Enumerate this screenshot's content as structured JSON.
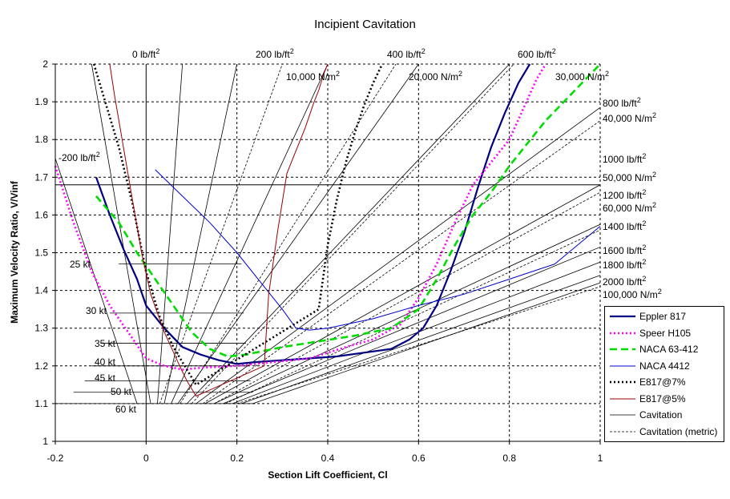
{
  "chart_data": {
    "type": "line",
    "title": "Incipient Cavitation",
    "xlabel": "Section Lift Coefficient, Cl",
    "ylabel": "Maximum Velocity Ratio, V/Vinf",
    "xlim": [
      -0.2,
      1.0
    ],
    "ylim": [
      1.0,
      2.0
    ],
    "x_ticks": [
      -0.2,
      0,
      0.2,
      0.4,
      0.6,
      0.8,
      1
    ],
    "x_tick_labels": [
      "-0.2",
      "0",
      "0.2",
      "0.4",
      "0.6",
      "0.8",
      "1"
    ],
    "y_ticks": [
      1,
      1.1,
      1.2,
      1.3,
      1.4,
      1.5,
      1.6,
      1.7,
      1.8,
      1.9,
      2
    ],
    "y_tick_labels": [
      "1",
      "1.1",
      "1.2",
      "1.3",
      "1.4",
      "1.5",
      "1.6",
      "1.7",
      "1.8",
      "1.9",
      "2"
    ],
    "grid": "dashed",
    "legend_position": "lower-right",
    "series": [
      {
        "name": "Eppler 817",
        "color": "#000080",
        "style": "solid-bold",
        "x": [
          -0.11,
          -0.08,
          -0.05,
          -0.02,
          0.0,
          0.04,
          0.08,
          0.12,
          0.16,
          0.2,
          0.24,
          0.3,
          0.36,
          0.42,
          0.48,
          0.54,
          0.58,
          0.61,
          0.64,
          0.67,
          0.7,
          0.73,
          0.76,
          0.79,
          0.82,
          0.845
        ],
        "y": [
          1.7,
          1.6,
          1.51,
          1.43,
          1.36,
          1.3,
          1.25,
          1.23,
          1.215,
          1.205,
          1.21,
          1.215,
          1.22,
          1.225,
          1.235,
          1.245,
          1.27,
          1.3,
          1.36,
          1.45,
          1.55,
          1.67,
          1.78,
          1.87,
          1.95,
          2.0
        ]
      },
      {
        "name": "Speer H105",
        "color": "#ff00ff",
        "style": "dotted-bold",
        "x": [
          -0.2,
          -0.16,
          -0.12,
          -0.08,
          -0.04,
          0.0,
          0.04,
          0.08,
          0.12,
          0.2,
          0.28,
          0.36,
          0.44,
          0.5,
          0.56,
          0.6,
          0.64,
          0.68,
          0.72,
          0.76,
          0.8,
          0.83,
          0.86,
          0.88
        ],
        "y": [
          1.73,
          1.58,
          1.45,
          1.36,
          1.29,
          1.22,
          1.2,
          1.19,
          1.195,
          1.2,
          1.21,
          1.22,
          1.25,
          1.27,
          1.31,
          1.38,
          1.47,
          1.58,
          1.68,
          1.74,
          1.8,
          1.88,
          1.96,
          2.0
        ]
      },
      {
        "name": "NACA 63-412",
        "color": "#00dd00",
        "style": "dashed-bold",
        "x": [
          -0.11,
          -0.06,
          -0.02,
          0.02,
          0.06,
          0.1,
          0.14,
          0.18,
          0.22,
          0.3,
          0.38,
          0.46,
          0.54,
          0.6,
          0.64,
          0.68,
          0.72,
          0.76,
          0.8,
          0.84,
          0.88,
          0.92,
          0.96,
          1.0
        ],
        "y": [
          1.65,
          1.58,
          1.5,
          1.43,
          1.36,
          1.29,
          1.245,
          1.225,
          1.23,
          1.25,
          1.265,
          1.28,
          1.3,
          1.35,
          1.43,
          1.52,
          1.6,
          1.66,
          1.73,
          1.79,
          1.85,
          1.9,
          1.95,
          2.0
        ]
      },
      {
        "name": "NACA 4412",
        "color": "#0000cc",
        "style": "solid-thin",
        "x": [
          0.02,
          0.08,
          0.14,
          0.2,
          0.26,
          0.3,
          0.33,
          0.36,
          0.4,
          0.5,
          0.6,
          0.7,
          0.8,
          0.9,
          1.0
        ],
        "y": [
          1.72,
          1.65,
          1.58,
          1.5,
          1.41,
          1.35,
          1.3,
          1.295,
          1.3,
          1.325,
          1.36,
          1.39,
          1.43,
          1.47,
          1.57
        ]
      },
      {
        "name": "E817@7%",
        "color": "#000000",
        "style": "dotted-bold",
        "x": [
          -0.115,
          -0.09,
          -0.06,
          -0.03,
          0.0,
          0.03,
          0.06,
          0.09,
          0.11,
          0.38,
          0.4,
          0.42,
          0.44,
          0.46,
          0.48,
          0.5,
          0.52
        ],
        "y": [
          2.0,
          1.9,
          1.78,
          1.63,
          1.45,
          1.33,
          1.25,
          1.19,
          1.15,
          1.35,
          1.52,
          1.64,
          1.74,
          1.82,
          1.89,
          1.95,
          2.0
        ]
      },
      {
        "name": "E817@5%",
        "color": "#990000",
        "style": "solid-thin",
        "x": [
          -0.08,
          -0.07,
          -0.05,
          -0.03,
          -0.01,
          0.01,
          0.04,
          0.07,
          0.09,
          0.11,
          0.26,
          0.27,
          0.29,
          0.31,
          0.33,
          0.35,
          0.37,
          0.38,
          0.39,
          0.4
        ],
        "y": [
          2.0,
          1.92,
          1.78,
          1.64,
          1.5,
          1.39,
          1.29,
          1.21,
          1.16,
          1.12,
          1.2,
          1.39,
          1.56,
          1.71,
          1.77,
          1.83,
          1.9,
          1.93,
          1.97,
          2.0
        ]
      },
      {
        "name": "Cavitation",
        "color": "#000000",
        "style": "solid-hair"
      },
      {
        "name": "Cavitation (metric)",
        "color": "#000000",
        "style": "dashed-hair"
      }
    ],
    "cavitation_lines": {
      "apex_y": 1.1,
      "apex_x": [
        -0.02,
        0.01,
        0.025,
        0.04,
        0.055,
        0.07,
        0.09,
        0.11,
        0.13,
        0.15,
        0.17,
        0.19,
        0.21,
        0.235
      ],
      "end_x": [
        -0.2,
        -0.12,
        0.08,
        0.2,
        0.4,
        0.6,
        0.8,
        1.0,
        1.0,
        1.0,
        1.0,
        1.0,
        1.0,
        1.0
      ],
      "end_y": [
        1.75,
        2.0,
        2.0,
        2.0,
        2.0,
        2.0,
        2.0,
        1.885,
        1.68,
        1.575,
        1.515,
        1.475,
        1.44,
        1.42
      ],
      "metric_apex_x": [
        0.03,
        0.075,
        0.1,
        0.125,
        0.15,
        0.175,
        0.2
      ],
      "metric_end_x": [
        0.3,
        0.55,
        0.81,
        1.0,
        1.0,
        1.0,
        1.0
      ],
      "metric_end_y": [
        2.0,
        2.0,
        2.0,
        1.85,
        1.66,
        1.56,
        1.41
      ]
    },
    "speed_lines": {
      "x_start": -0.02,
      "x_end": [
        -0.2,
        -0.16,
        -0.135,
        -0.12,
        -0.1,
        -0.08,
        -0.06
      ],
      "y": [
        1.1,
        1.13,
        1.16,
        1.2,
        1.26,
        1.34,
        1.47
      ]
    },
    "annotations": {
      "top": [
        "0 lb/ft²",
        "200 lb/ft²",
        "400 lb/ft²",
        "600 lb/ft²"
      ],
      "top_metric": [
        "10,000 N/m²",
        "20,000 N/m²",
        "30,000 N/m²"
      ],
      "right": [
        "800 lb/ft²",
        "40,000 N/m²",
        "1000 lb/ft²",
        "50,000 N/m²",
        "1200 lb/ft²",
        "60,000 N/m²",
        "1400 lb/ft²",
        "1600 lb/ft²",
        "1800 lb/ft²",
        "2000 lb/ft²",
        "100,000 N/m²"
      ],
      "left": [
        "-200 lb/ft²"
      ],
      "speeds": [
        "25 kt",
        "30 kt",
        "35 kt",
        "40 kt",
        "45 kt",
        "50 kt",
        "60 kt"
      ]
    }
  }
}
